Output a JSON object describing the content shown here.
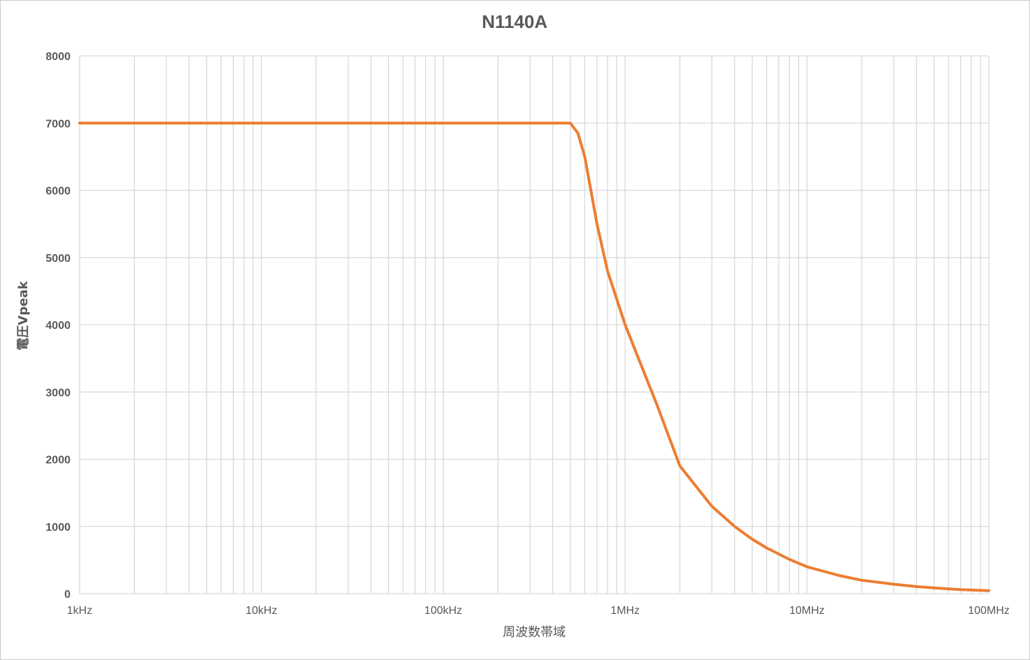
{
  "chart_data": {
    "type": "line",
    "title": "N1140A",
    "xlabel": "周波数帯域",
    "ylabel": "電圧Vpeak",
    "x_scale": "log",
    "xlim": [
      "1kHz",
      "100MHz"
    ],
    "ylim": [
      0,
      8000
    ],
    "grid": true,
    "legend": "none",
    "x_tick_labels": [
      "1kHz",
      "10kHz",
      "100kHz",
      "1MHz",
      "10MHz",
      "100MHz"
    ],
    "y_tick_labels": [
      "0",
      "1000",
      "2000",
      "3000",
      "4000",
      "5000",
      "6000",
      "7000",
      "8000"
    ],
    "series": [
      {
        "color": "#ed7d31",
        "x_hz": [
          1000,
          10000,
          100000,
          500000,
          550000,
          600000,
          700000,
          800000,
          1000000,
          1500000,
          2000000,
          3000000,
          4000000,
          5000000,
          6000000,
          8000000,
          10000000,
          15000000,
          20000000,
          30000000,
          40000000,
          50000000,
          70000000,
          100000000
        ],
        "y": [
          7000,
          7000,
          7000,
          7000,
          6850,
          6500,
          5500,
          4800,
          4000,
          2800,
          1900,
          1300,
          1000,
          810,
          680,
          510,
          400,
          270,
          200,
          140,
          105,
          85,
          60,
          45
        ]
      }
    ]
  }
}
